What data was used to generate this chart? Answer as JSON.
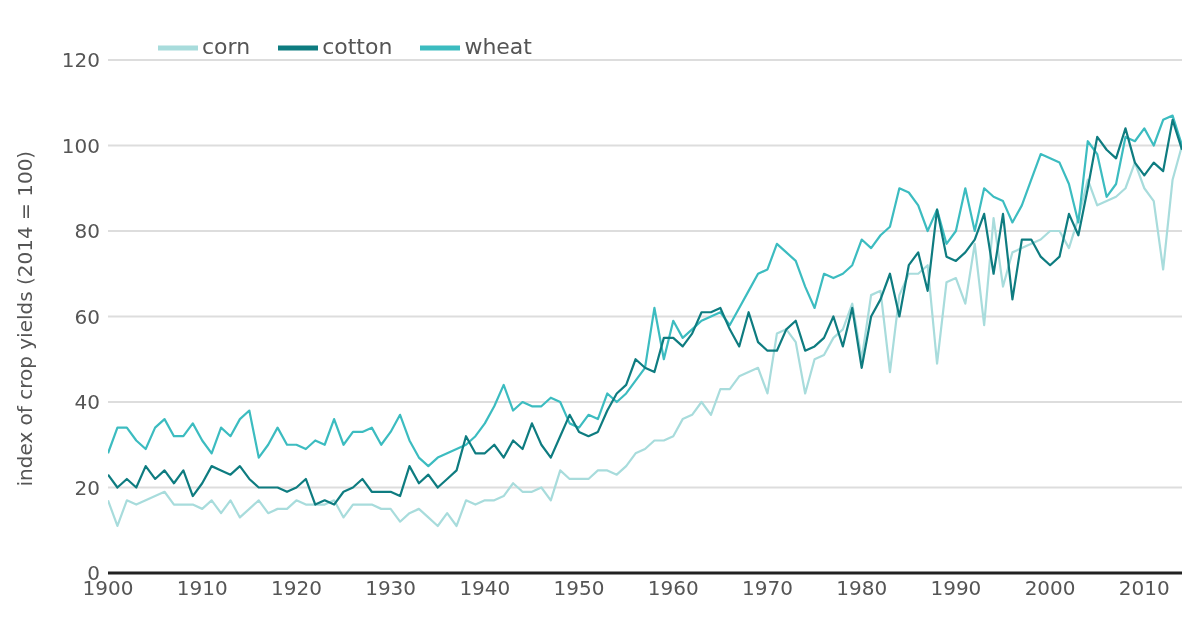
{
  "chart_data": {
    "type": "line",
    "ylabel": "index of crop yields (2014 = 100)",
    "x": [
      1900,
      1901,
      1902,
      1903,
      1904,
      1905,
      1906,
      1907,
      1908,
      1909,
      1910,
      1911,
      1912,
      1913,
      1914,
      1915,
      1916,
      1917,
      1918,
      1919,
      1920,
      1921,
      1922,
      1923,
      1924,
      1925,
      1926,
      1927,
      1928,
      1929,
      1930,
      1931,
      1932,
      1933,
      1934,
      1935,
      1936,
      1937,
      1938,
      1939,
      1940,
      1941,
      1942,
      1943,
      1944,
      1945,
      1946,
      1947,
      1948,
      1949,
      1950,
      1951,
      1952,
      1953,
      1954,
      1955,
      1956,
      1957,
      1958,
      1959,
      1960,
      1961,
      1962,
      1963,
      1964,
      1965,
      1966,
      1967,
      1968,
      1969,
      1970,
      1971,
      1972,
      1973,
      1974,
      1975,
      1976,
      1977,
      1978,
      1979,
      1980,
      1981,
      1982,
      1983,
      1984,
      1985,
      1986,
      1987,
      1988,
      1989,
      1990,
      1991,
      1992,
      1993,
      1994,
      1995,
      1996,
      1997,
      1998,
      1999,
      2000,
      2001,
      2002,
      2003,
      2004,
      2005,
      2006,
      2007,
      2008,
      2009,
      2010,
      2011,
      2012,
      2013,
      2014
    ],
    "series": [
      {
        "name": "corn",
        "color": "#a8dcdc",
        "values": [
          17,
          11,
          17,
          16,
          17,
          18,
          19,
          16,
          16,
          16,
          15,
          17,
          14,
          17,
          13,
          15,
          17,
          14,
          15,
          15,
          17,
          16,
          16,
          16,
          17,
          13,
          16,
          16,
          16,
          15,
          15,
          12,
          14,
          15,
          13,
          11,
          14,
          11,
          17,
          16,
          17,
          17,
          18,
          21,
          19,
          19,
          20,
          17,
          24,
          22,
          22,
          22,
          24,
          24,
          23,
          25,
          28,
          29,
          31,
          31,
          32,
          36,
          37,
          40,
          37,
          43,
          43,
          46,
          47,
          48,
          42,
          56,
          57,
          54,
          42,
          50,
          51,
          55,
          57,
          63,
          50,
          65,
          66,
          47,
          65,
          70,
          70,
          72,
          49,
          68,
          69,
          63,
          77,
          58,
          83,
          67,
          75,
          76,
          77,
          78,
          80,
          80,
          76,
          83,
          92,
          86,
          87,
          88,
          90,
          96,
          90,
          87,
          71,
          92,
          100
        ]
      },
      {
        "name": "wheat",
        "color": "#3cbcc0",
        "values": [
          28,
          34,
          34,
          31,
          29,
          34,
          36,
          32,
          32,
          35,
          31,
          28,
          34,
          32,
          36,
          38,
          27,
          30,
          34,
          30,
          30,
          29,
          31,
          30,
          36,
          30,
          33,
          33,
          34,
          30,
          33,
          37,
          31,
          27,
          25,
          27,
          28,
          29,
          30,
          32,
          35,
          39,
          44,
          38,
          40,
          39,
          39,
          41,
          40,
          35,
          34,
          37,
          36,
          42,
          40,
          42,
          45,
          48,
          62,
          50,
          59,
          55,
          57,
          59,
          60,
          61,
          58,
          62,
          66,
          70,
          71,
          77,
          75,
          73,
          67,
          62,
          70,
          69,
          70,
          72,
          78,
          76,
          79,
          81,
          90,
          89,
          86,
          80,
          85,
          77,
          80,
          90,
          80,
          90,
          88,
          87,
          82,
          86,
          92,
          98,
          97,
          96,
          91,
          82,
          101,
          98,
          88,
          91,
          102,
          101,
          104,
          100,
          106,
          107,
          100
        ]
      },
      {
        "name": "cotton",
        "color": "#0e7c80",
        "values": [
          23,
          20,
          22,
          20,
          25,
          22,
          24,
          21,
          24,
          18,
          21,
          25,
          24,
          23,
          25,
          22,
          20,
          20,
          20,
          19,
          20,
          22,
          16,
          17,
          16,
          19,
          20,
          22,
          19,
          19,
          19,
          18,
          25,
          21,
          23,
          20,
          22,
          24,
          32,
          28,
          28,
          30,
          27,
          31,
          29,
          35,
          30,
          27,
          32,
          37,
          33,
          32,
          33,
          38,
          42,
          44,
          50,
          48,
          47,
          55,
          55,
          53,
          56,
          61,
          61,
          62,
          57,
          53,
          61,
          54,
          52,
          52,
          57,
          59,
          52,
          53,
          55,
          60,
          53,
          62,
          48,
          60,
          64,
          70,
          60,
          72,
          75,
          66,
          85,
          74,
          73,
          75,
          78,
          84,
          70,
          84,
          64,
          78,
          78,
          74,
          72,
          74,
          84,
          79,
          90,
          102,
          99,
          97,
          104,
          96,
          93,
          96,
          94,
          106,
          99
        ]
      }
    ],
    "xlim": [
      1900,
      2014
    ],
    "xticks": [
      1900,
      1910,
      1920,
      1930,
      1940,
      1950,
      1960,
      1970,
      1980,
      1990,
      2000,
      2010
    ],
    "ylim": [
      0,
      120
    ],
    "yticks": [
      0,
      20,
      40,
      60,
      80,
      100,
      120
    ],
    "grid": "y",
    "legend": "top left",
    "marker": "none",
    "line_style": "solid"
  }
}
